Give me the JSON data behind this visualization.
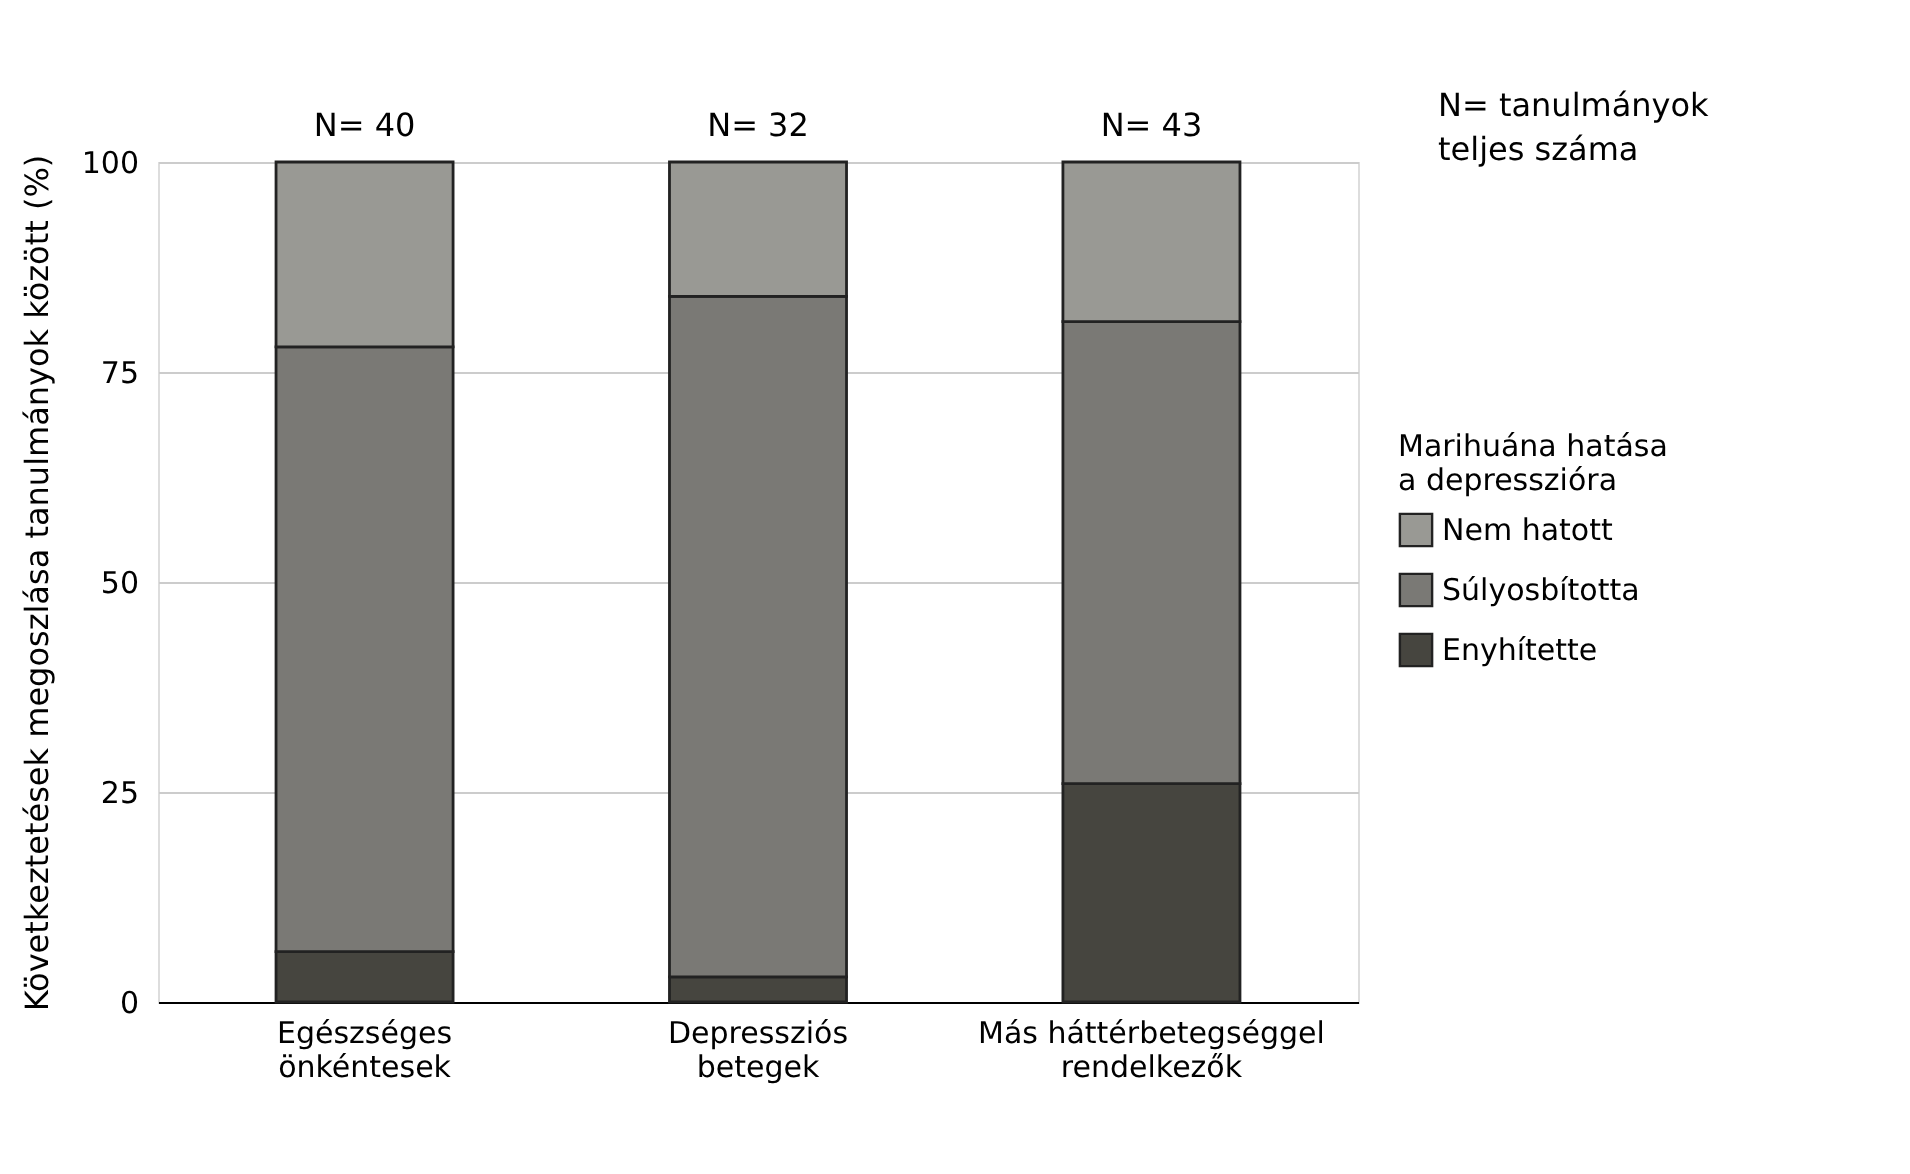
{
  "chart_data": {
    "type": "bar",
    "stacked": true,
    "ylabel": "Következtetések megoszlása tanulmányok között (%)",
    "categories": [
      "Egészséges\nönkéntesek",
      "Depressziós\nbetegek",
      "Más háttérbetegséggel\nrendelkezők"
    ],
    "series": [
      {
        "name": "Enyhítette",
        "color": "#46453f",
        "values": [
          6,
          3,
          26
        ]
      },
      {
        "name": "Súlyosbította",
        "color": "#7a7975",
        "values": [
          72,
          81,
          55
        ]
      },
      {
        "name": "Nem hatott",
        "color": "#999994",
        "values": [
          22,
          16,
          19
        ]
      }
    ],
    "ylim": [
      0,
      100
    ],
    "yticks": [
      0,
      25,
      50,
      75,
      100
    ],
    "grid": "y",
    "legend": "right",
    "legend_title": "Marihuána hatása\na depresszióra",
    "annotations": [
      "N= 40",
      "N= 32",
      "N= 43",
      "N= tanulmányok\nteljes száma"
    ]
  }
}
